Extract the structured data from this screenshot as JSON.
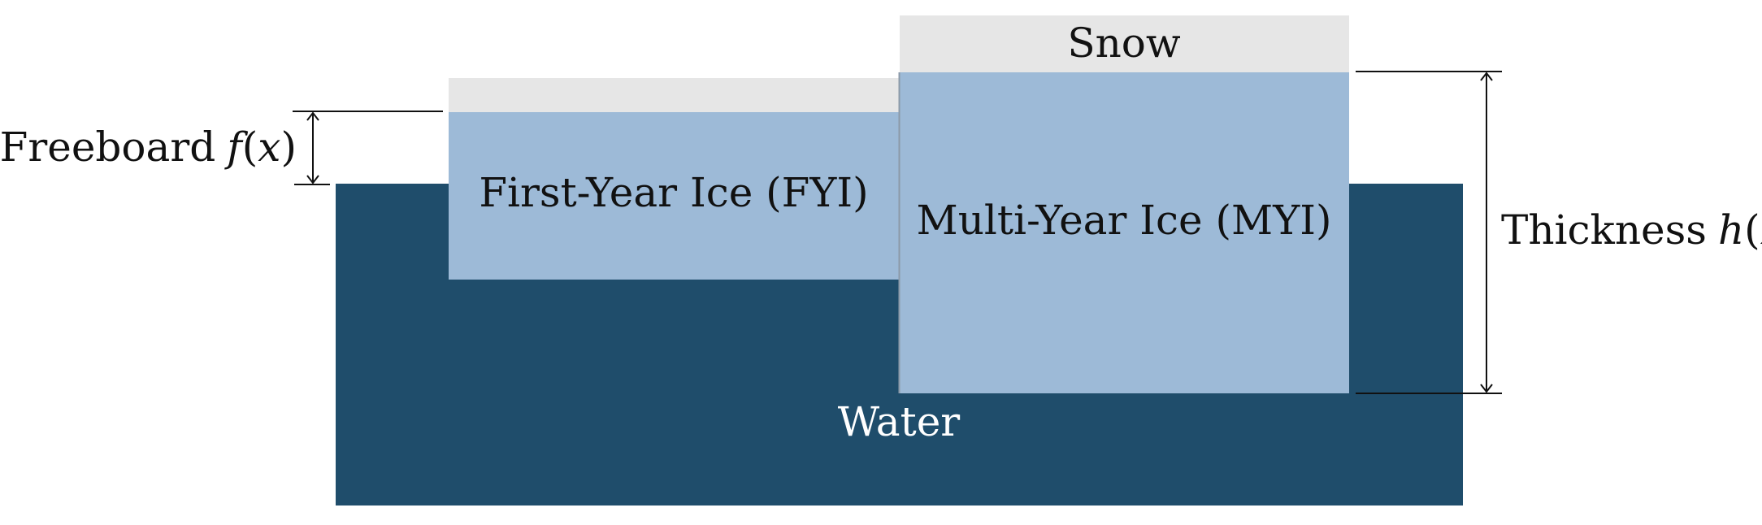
{
  "labels": {
    "snow": "Snow",
    "first_year_ice": "First-Year Ice (FYI)",
    "multi_year_ice": "Multi-Year Ice (MYI)",
    "water": "Water",
    "freeboard": "Freeboard",
    "freeboard_symbol": "f",
    "thickness": "Thickness",
    "thickness_symbol": "h",
    "variable": "x"
  },
  "colors": {
    "water": "#1f4d6b",
    "ice": "#9dbad7",
    "snow": "#e6e6e6",
    "line": "#111111",
    "water_text": "#ffffff"
  }
}
